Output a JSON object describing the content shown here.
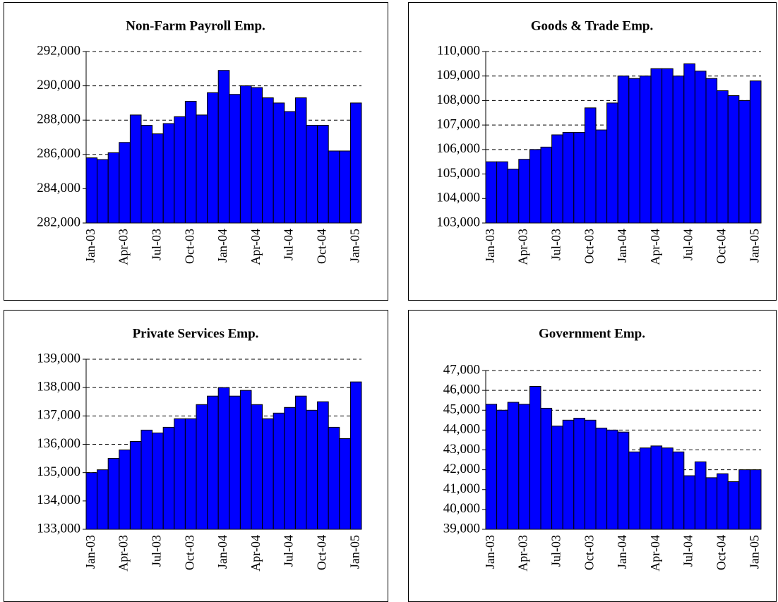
{
  "chart_data": [
    {
      "type": "bar",
      "title": "Non-Farm Payroll Emp.",
      "color": "#0000ff",
      "grid": true,
      "categories": [
        "Jan-03",
        null,
        null,
        "Apr-03",
        null,
        null,
        "Jul-03",
        null,
        null,
        "Oct-03",
        null,
        null,
        "Jan-04",
        null,
        null,
        "Apr-04",
        null,
        null,
        "Jul-04",
        null,
        null,
        "Oct-04",
        null,
        null,
        "Jan-05"
      ],
      "values": [
        285800,
        285700,
        286100,
        286700,
        288300,
        287700,
        287200,
        287800,
        288200,
        289100,
        288300,
        289600,
        290900,
        289500,
        290000,
        289900,
        289300,
        289000,
        288500,
        289300,
        287700,
        287700,
        286200,
        286200,
        289000
      ],
      "ylim": [
        282000,
        292000
      ],
      "yticks": [
        {
          "value": 282000,
          "label": "282,000"
        },
        {
          "value": 284000,
          "label": "284,000"
        },
        {
          "value": 286000,
          "label": "286,000"
        },
        {
          "value": 288000,
          "label": "288,000"
        },
        {
          "value": 290000,
          "label": "290,000"
        },
        {
          "value": 292000,
          "label": "292,000"
        }
      ]
    },
    {
      "type": "bar",
      "title": "Goods & Trade Emp.",
      "color": "#0000ff",
      "grid": true,
      "categories": [
        "Jan-03",
        null,
        null,
        "Apr-03",
        null,
        null,
        "Jul-03",
        null,
        null,
        "Oct-03",
        null,
        null,
        "Jan-04",
        null,
        null,
        "Apr-04",
        null,
        null,
        "Jul-04",
        null,
        null,
        "Oct-04",
        null,
        null,
        "Jan-05"
      ],
      "values": [
        105500,
        105500,
        105200,
        105600,
        106000,
        106100,
        106600,
        106700,
        106700,
        107700,
        106800,
        107900,
        109000,
        108900,
        109000,
        109300,
        109300,
        109000,
        109500,
        109200,
        108900,
        108400,
        108200,
        108000,
        108800
      ],
      "ylim": [
        103000,
        110000
      ],
      "yticks": [
        {
          "value": 103000,
          "label": "103,000"
        },
        {
          "value": 104000,
          "label": "104,000"
        },
        {
          "value": 105000,
          "label": "105,000"
        },
        {
          "value": 106000,
          "label": "106,000"
        },
        {
          "value": 107000,
          "label": "107,000"
        },
        {
          "value": 108000,
          "label": "108,000"
        },
        {
          "value": 109000,
          "label": "109,000"
        },
        {
          "value": 110000,
          "label": "110,000"
        }
      ]
    },
    {
      "type": "bar",
      "title": "Private Services Emp.",
      "color": "#0000ff",
      "grid": true,
      "categories": [
        "Jan-03",
        null,
        null,
        "Apr-03",
        null,
        null,
        "Jul-03",
        null,
        null,
        "Oct-03",
        null,
        null,
        "Jan-04",
        null,
        null,
        "Apr-04",
        null,
        null,
        "Jul-04",
        null,
        null,
        "Oct-04",
        null,
        null,
        "Jan-05"
      ],
      "values": [
        135000,
        135100,
        135500,
        135800,
        136100,
        136500,
        136400,
        136600,
        136900,
        136900,
        137400,
        137700,
        138000,
        137700,
        137900,
        137400,
        136900,
        137100,
        137300,
        137700,
        137200,
        137500,
        136600,
        136200,
        138200
      ],
      "ylim": [
        133000,
        139000
      ],
      "yticks": [
        {
          "value": 133000,
          "label": "133,000"
        },
        {
          "value": 134000,
          "label": "134,000"
        },
        {
          "value": 135000,
          "label": "135,000"
        },
        {
          "value": 136000,
          "label": "136,000"
        },
        {
          "value": 137000,
          "label": "137,000"
        },
        {
          "value": 138000,
          "label": "138,000"
        },
        {
          "value": 139000,
          "label": "139,000"
        }
      ]
    },
    {
      "type": "bar",
      "title": "Government Emp.",
      "color": "#0000ff",
      "grid": true,
      "categories": [
        "Jan-03",
        null,
        null,
        "Apr-03",
        null,
        null,
        "Jul-03",
        null,
        null,
        "Oct-03",
        null,
        null,
        "Jan-04",
        null,
        null,
        "Apr-04",
        null,
        null,
        "Jul-04",
        null,
        null,
        "Oct-04",
        null,
        null,
        "Jan-05"
      ],
      "values": [
        45300,
        45000,
        45400,
        45300,
        46200,
        45100,
        44200,
        44500,
        44600,
        44500,
        44100,
        44000,
        43900,
        42900,
        43100,
        43200,
        43100,
        42900,
        41700,
        42400,
        41600,
        41800,
        41400,
        42000,
        42000
      ],
      "ylim": [
        39000,
        47000
      ],
      "yticks": [
        {
          "value": 39000,
          "label": "39,000"
        },
        {
          "value": 40000,
          "label": "40,000"
        },
        {
          "value": 41000,
          "label": "41,000"
        },
        {
          "value": 42000,
          "label": "42,000"
        },
        {
          "value": 43000,
          "label": "43,000"
        },
        {
          "value": 44000,
          "label": "44,000"
        },
        {
          "value": 45000,
          "label": "45,000"
        },
        {
          "value": 46000,
          "label": "46,000"
        },
        {
          "value": 47000,
          "label": "47,000"
        }
      ]
    }
  ]
}
